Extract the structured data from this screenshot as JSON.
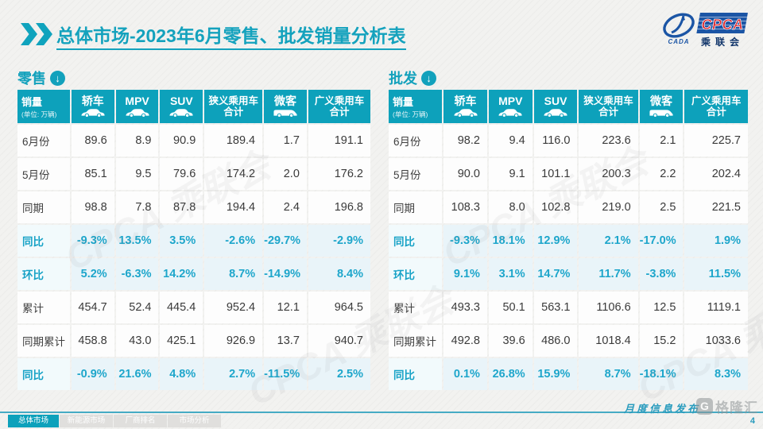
{
  "title": {
    "section": "总体市场",
    "rest": "-2023年6月零售、批发销量分析表"
  },
  "logo": {
    "cpca": "CPCA",
    "cada": "CADA",
    "sub": "乘联会"
  },
  "unit_note": "(单位: 万辆)",
  "columns": [
    {
      "label": "销量",
      "note": "(单位: 万辆)"
    },
    {
      "label": "轿车",
      "icon": "car-icon"
    },
    {
      "label": "MPV",
      "icon": "car-icon"
    },
    {
      "label": "SUV",
      "icon": "car-icon"
    },
    {
      "label": "狭义乘用车\n合计"
    },
    {
      "label": "微客",
      "icon": "van-icon"
    },
    {
      "label": "广义乘用车\n合计"
    }
  ],
  "tables": [
    {
      "label": "零售",
      "rows": [
        {
          "label": "6月份",
          "type": "data",
          "values": [
            "89.6",
            "8.9",
            "90.9",
            "189.4",
            "1.7",
            "191.1"
          ]
        },
        {
          "label": "5月份",
          "type": "data",
          "values": [
            "85.1",
            "9.5",
            "79.6",
            "174.2",
            "2.0",
            "176.2"
          ]
        },
        {
          "label": "同期",
          "type": "data",
          "values": [
            "98.8",
            "7.8",
            "87.8",
            "194.4",
            "2.4",
            "196.8"
          ]
        },
        {
          "label": "同比",
          "type": "pct",
          "values": [
            "-9.3%",
            "13.5%",
            "3.5%",
            "-2.6%",
            "-29.7%",
            "-2.9%"
          ]
        },
        {
          "label": "环比",
          "type": "pct",
          "values": [
            "5.2%",
            "-6.3%",
            "14.2%",
            "8.7%",
            "-14.9%",
            "8.4%"
          ]
        },
        {
          "label": "累计",
          "type": "data",
          "values": [
            "454.7",
            "52.4",
            "445.4",
            "952.4",
            "12.1",
            "964.5"
          ]
        },
        {
          "label": "同期累计",
          "type": "data",
          "values": [
            "458.8",
            "43.0",
            "425.1",
            "926.9",
            "13.7",
            "940.7"
          ]
        },
        {
          "label": "同比",
          "type": "pct",
          "values": [
            "-0.9%",
            "21.6%",
            "4.8%",
            "2.7%",
            "-11.5%",
            "2.5%"
          ]
        }
      ]
    },
    {
      "label": "批发",
      "rows": [
        {
          "label": "6月份",
          "type": "data",
          "values": [
            "98.2",
            "9.4",
            "116.0",
            "223.6",
            "2.1",
            "225.7"
          ]
        },
        {
          "label": "5月份",
          "type": "data",
          "values": [
            "90.0",
            "9.1",
            "101.1",
            "200.3",
            "2.2",
            "202.4"
          ]
        },
        {
          "label": "同期",
          "type": "data",
          "values": [
            "108.3",
            "8.0",
            "102.8",
            "219.0",
            "2.5",
            "221.5"
          ]
        },
        {
          "label": "同比",
          "type": "pct",
          "values": [
            "-9.3%",
            "18.1%",
            "12.9%",
            "2.1%",
            "-17.0%",
            "1.9%"
          ]
        },
        {
          "label": "环比",
          "type": "pct",
          "values": [
            "9.1%",
            "3.1%",
            "14.7%",
            "11.7%",
            "-3.8%",
            "11.5%"
          ]
        },
        {
          "label": "累计",
          "type": "data",
          "values": [
            "493.3",
            "50.1",
            "563.1",
            "1106.6",
            "12.5",
            "1119.1"
          ]
        },
        {
          "label": "同期累计",
          "type": "data",
          "values": [
            "492.8",
            "39.6",
            "486.0",
            "1018.4",
            "15.2",
            "1033.6"
          ]
        },
        {
          "label": "同比",
          "type": "pct",
          "values": [
            "0.1%",
            "26.8%",
            "15.9%",
            "8.7%",
            "-18.1%",
            "8.3%"
          ]
        }
      ]
    }
  ],
  "watermark": "CPCA 乘联会",
  "footer": {
    "tabs": [
      {
        "label": "总体市场",
        "active": true
      },
      {
        "label": "新能源市场",
        "active": false
      },
      {
        "label": "厂商排名",
        "active": false
      },
      {
        "label": "市场分析",
        "active": false
      }
    ],
    "note": "月度信息发布",
    "brand": "格隆汇",
    "brand_mark": "G",
    "page": "4"
  },
  "colors": {
    "accent": "#0da1bb",
    "pct_text": "#1ea6cb",
    "logo_blue": "#1b55a5",
    "logo_red": "#d9262c"
  }
}
